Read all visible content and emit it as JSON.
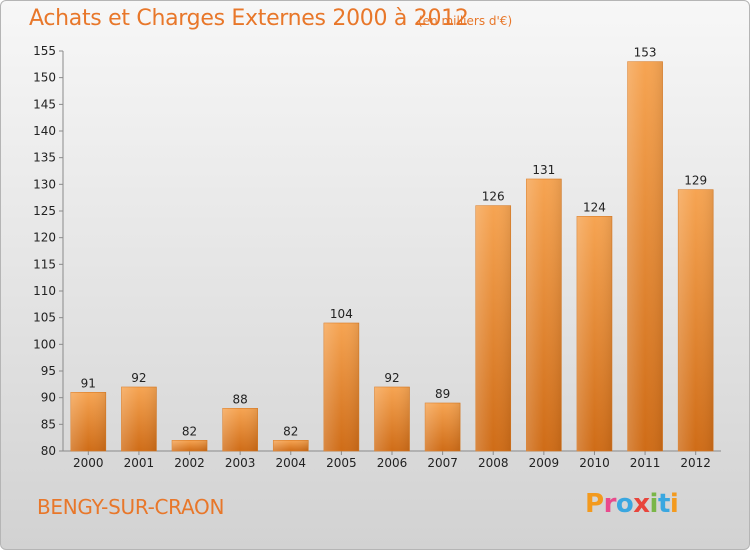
{
  "header": {
    "title": "Achats et Charges Externes 2000 à 2012",
    "unit": "(en milliers d'€)"
  },
  "footer": {
    "commune": "BENGY-SUR-CRAON",
    "logo_letters": [
      "P",
      "r",
      "o",
      "x",
      "i",
      "t",
      "i"
    ],
    "logo_colors": [
      "#f39a1e",
      "#e94a8c",
      "#3aa7e0",
      "#e8453c",
      "#7ab648",
      "#3aa7e0",
      "#f39a1e"
    ]
  },
  "chart_data": {
    "type": "bar",
    "title": "Achats et Charges Externes 2000 à 2012",
    "subtitle": "(en milliers d'€)",
    "categories": [
      "2000",
      "2001",
      "2002",
      "2003",
      "2004",
      "2005",
      "2006",
      "2007",
      "2008",
      "2009",
      "2010",
      "2011",
      "2012"
    ],
    "values": [
      91,
      92,
      82,
      88,
      82,
      104,
      92,
      89,
      126,
      131,
      124,
      153,
      129
    ],
    "ylim": [
      80,
      155
    ],
    "yticks": [
      80,
      85,
      90,
      95,
      100,
      105,
      110,
      115,
      120,
      125,
      130,
      135,
      140,
      145,
      150,
      155
    ],
    "xlabel": "",
    "ylabel": "",
    "grid": false,
    "bar_color": "#f0902f"
  }
}
